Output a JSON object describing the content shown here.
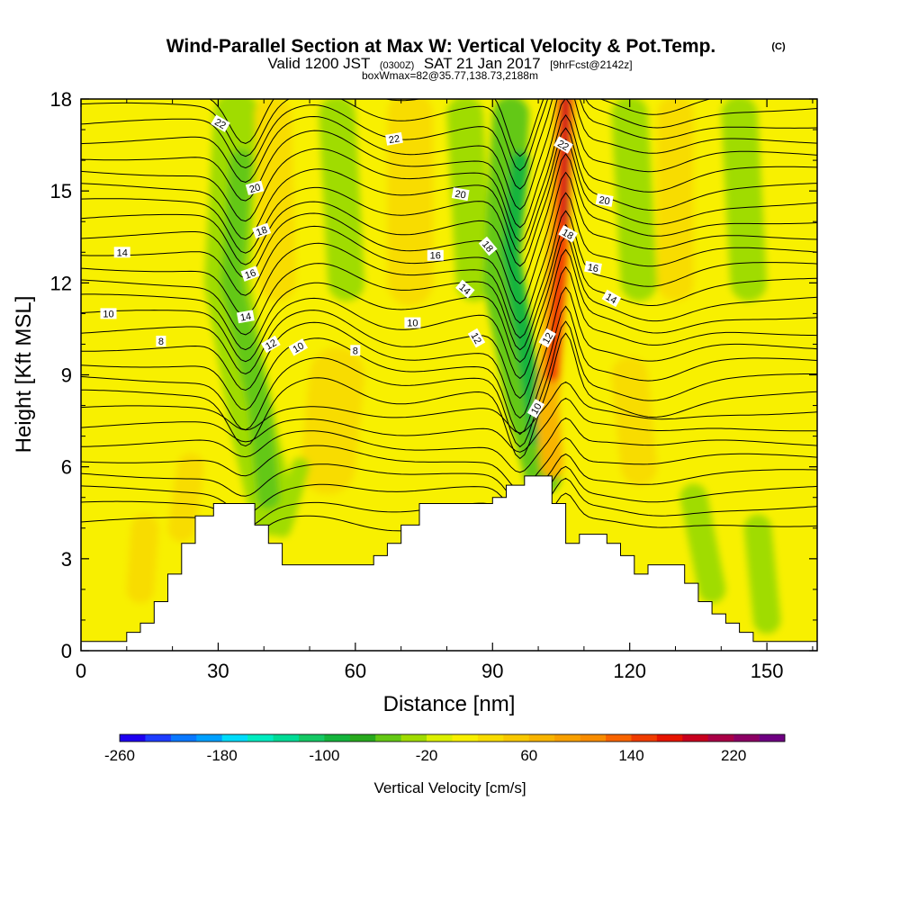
{
  "title": {
    "main": "Wind-Parallel Section at Max W: Vertical Velocity & Pot.Temp.",
    "copyright": "(C)",
    "valid_prefix": "Valid 1200 JST",
    "valid_utc": "(0300Z)",
    "valid_date": "SAT 21 Jan 2017",
    "forecast": "[9hrFcst@2142z]",
    "box": "boxWmax=82@35.77,138.73,2188m"
  },
  "chart_data": {
    "type": "heatmap",
    "xlabel": "Distance [nm]",
    "ylabel": "Height [Kft MSL]",
    "xlim": [
      0,
      161
    ],
    "ylim": [
      0,
      18
    ],
    "x_ticks": [
      0,
      30,
      60,
      90,
      120,
      150
    ],
    "y_ticks": [
      0,
      3,
      6,
      9,
      12,
      15,
      18
    ],
    "background_value_color": "#f8f000",
    "terrain_top_kft": [
      [
        0,
        0.3
      ],
      [
        10,
        0.3
      ],
      [
        10,
        0.6
      ],
      [
        13,
        0.6
      ],
      [
        13,
        0.9
      ],
      [
        16,
        0.9
      ],
      [
        16,
        1.6
      ],
      [
        19,
        1.6
      ],
      [
        19,
        2.5
      ],
      [
        22,
        2.5
      ],
      [
        22,
        3.5
      ],
      [
        25,
        3.5
      ],
      [
        25,
        4.4
      ],
      [
        29,
        4.4
      ],
      [
        29,
        4.8
      ],
      [
        38,
        4.8
      ],
      [
        38,
        4.1
      ],
      [
        41,
        4.1
      ],
      [
        41,
        3.5
      ],
      [
        44,
        3.5
      ],
      [
        44,
        2.8
      ],
      [
        64,
        2.8
      ],
      [
        64,
        3.1
      ],
      [
        67,
        3.1
      ],
      [
        67,
        3.5
      ],
      [
        70,
        3.5
      ],
      [
        70,
        4.1
      ],
      [
        74,
        4.1
      ],
      [
        74,
        4.8
      ],
      [
        90,
        4.8
      ],
      [
        90,
        5.0
      ],
      [
        93,
        5.0
      ],
      [
        93,
        5.4
      ],
      [
        97,
        5.4
      ],
      [
        97,
        5.7
      ],
      [
        103,
        5.7
      ],
      [
        103,
        4.8
      ],
      [
        106,
        4.8
      ],
      [
        106,
        3.5
      ],
      [
        109,
        3.5
      ],
      [
        109,
        3.8
      ],
      [
        115,
        3.8
      ],
      [
        115,
        3.5
      ],
      [
        118,
        3.5
      ],
      [
        118,
        3.1
      ],
      [
        121,
        3.1
      ],
      [
        121,
        2.5
      ],
      [
        124,
        2.5
      ],
      [
        124,
        2.8
      ],
      [
        132,
        2.8
      ],
      [
        132,
        2.2
      ],
      [
        135,
        2.2
      ],
      [
        135,
        1.6
      ],
      [
        138,
        1.6
      ],
      [
        138,
        1.2
      ],
      [
        141,
        1.2
      ],
      [
        141,
        0.9
      ],
      [
        144,
        0.9
      ],
      [
        144,
        0.6
      ],
      [
        147,
        0.6
      ],
      [
        147,
        0.3
      ],
      [
        161,
        0.3
      ]
    ],
    "velocity_features": [
      {
        "kind": "downdraft",
        "value": -40,
        "path": [
          [
            34,
            17.5
          ],
          [
            32,
            12
          ],
          [
            38,
            7
          ],
          [
            42,
            4.5
          ]
        ],
        "width_nm": 10
      },
      {
        "kind": "downdraft",
        "value": -60,
        "path": [
          [
            35,
            16
          ],
          [
            33,
            12
          ],
          [
            39,
            8
          ],
          [
            41,
            5
          ]
        ],
        "width_nm": 5
      },
      {
        "kind": "updraft",
        "value": 20,
        "path": [
          [
            42,
            17.5
          ],
          [
            43,
            12
          ]
        ],
        "width_nm": 8
      },
      {
        "kind": "downdraft",
        "value": -40,
        "path": [
          [
            56,
            17.5
          ],
          [
            58,
            12
          ]
        ],
        "width_nm": 8
      },
      {
        "kind": "updraft",
        "value": 20,
        "path": [
          [
            72,
            17.5
          ],
          [
            72,
            12
          ]
        ],
        "width_nm": 10
      },
      {
        "kind": "downdraft",
        "value": -40,
        "path": [
          [
            84,
            17.5
          ],
          [
            86,
            12
          ]
        ],
        "width_nm": 8
      },
      {
        "kind": "downdraft",
        "value": -60,
        "path": [
          [
            94,
            17.5
          ],
          [
            92,
            12
          ],
          [
            97,
            8
          ],
          [
            101,
            5.7
          ]
        ],
        "width_nm": 8
      },
      {
        "kind": "downdraft",
        "value": -100,
        "path": [
          [
            96,
            16
          ],
          [
            94,
            13
          ],
          [
            97,
            10
          ],
          [
            100,
            7
          ]
        ],
        "width_nm": 4
      },
      {
        "kind": "updraft",
        "value": 60,
        "path": [
          [
            106,
            18
          ],
          [
            104,
            12
          ],
          [
            102,
            8
          ],
          [
            103,
            6
          ]
        ],
        "width_nm": 5
      },
      {
        "kind": "updraft",
        "value": 140,
        "path": [
          [
            106,
            18
          ],
          [
            105,
            13
          ],
          [
            103,
            9
          ]
        ],
        "width_nm": 3
      },
      {
        "kind": "updraft",
        "value": 180,
        "path": [
          [
            106,
            18
          ],
          [
            106,
            14
          ]
        ],
        "width_nm": 1.5
      },
      {
        "kind": "downdraft",
        "value": -40,
        "path": [
          [
            120,
            17.5
          ],
          [
            122,
            12
          ]
        ],
        "width_nm": 8
      },
      {
        "kind": "updraft",
        "value": 20,
        "path": [
          [
            130,
            17.5
          ],
          [
            130,
            12
          ]
        ],
        "width_nm": 8
      },
      {
        "kind": "downdraft",
        "value": -40,
        "path": [
          [
            144,
            17.5
          ],
          [
            146,
            12
          ]
        ],
        "width_nm": 8
      },
      {
        "kind": "updraft",
        "value": 20,
        "path": [
          [
            24,
            6
          ],
          [
            22,
            4
          ]
        ],
        "width_nm": 6
      },
      {
        "kind": "updraft",
        "value": 20,
        "path": [
          [
            14,
            4
          ],
          [
            13,
            2
          ]
        ],
        "width_nm": 6
      },
      {
        "kind": "updraft",
        "value": 20,
        "path": [
          [
            56,
            9
          ],
          [
            54,
            6
          ]
        ],
        "width_nm": 12
      },
      {
        "kind": "downdraft",
        "value": -40,
        "path": [
          [
            48,
            6
          ],
          [
            44,
            4
          ]
        ],
        "width_nm": 4
      },
      {
        "kind": "updraft",
        "value": 20,
        "path": [
          [
            120,
            9
          ],
          [
            122,
            6
          ]
        ],
        "width_nm": 8
      },
      {
        "kind": "downdraft",
        "value": -40,
        "path": [
          [
            134,
            5
          ],
          [
            138,
            2
          ]
        ],
        "width_nm": 6
      },
      {
        "kind": "downdraft",
        "value": -40,
        "path": [
          [
            148,
            4
          ],
          [
            150,
            1
          ]
        ],
        "width_nm": 6
      }
    ],
    "contour_labels": [
      {
        "text": "22",
        "x": 30.5,
        "y": 17.2,
        "rot": 30
      },
      {
        "text": "22",
        "x": 68.5,
        "y": 16.7,
        "rot": -10
      },
      {
        "text": "22",
        "x": 105.5,
        "y": 16.5,
        "rot": 30
      },
      {
        "text": "20",
        "x": 38,
        "y": 15.1,
        "rot": -15
      },
      {
        "text": "20",
        "x": 83,
        "y": 14.9,
        "rot": 10
      },
      {
        "text": "20",
        "x": 114.5,
        "y": 14.7,
        "rot": 10
      },
      {
        "text": "18",
        "x": 39.5,
        "y": 13.7,
        "rot": -20
      },
      {
        "text": "18",
        "x": 89,
        "y": 13.2,
        "rot": 50
      },
      {
        "text": "18",
        "x": 106.5,
        "y": 13.6,
        "rot": 30
      },
      {
        "text": "16",
        "x": 37,
        "y": 12.3,
        "rot": -20
      },
      {
        "text": "16",
        "x": 77.5,
        "y": 12.9,
        "rot": 0
      },
      {
        "text": "16",
        "x": 112,
        "y": 12.5,
        "rot": 10
      },
      {
        "text": "14",
        "x": 9,
        "y": 13.0,
        "rot": 0
      },
      {
        "text": "14",
        "x": 36,
        "y": 10.9,
        "rot": -10
      },
      {
        "text": "14",
        "x": 84,
        "y": 11.8,
        "rot": 40
      },
      {
        "text": "14",
        "x": 116,
        "y": 11.5,
        "rot": 30
      },
      {
        "text": "12",
        "x": 41.5,
        "y": 10.0,
        "rot": -30
      },
      {
        "text": "12",
        "x": 86.5,
        "y": 10.2,
        "rot": 60
      },
      {
        "text": "12",
        "x": 102,
        "y": 10.2,
        "rot": -60
      },
      {
        "text": "10",
        "x": 6,
        "y": 11.0,
        "rot": 0
      },
      {
        "text": "10",
        "x": 47.5,
        "y": 9.9,
        "rot": -30
      },
      {
        "text": "10",
        "x": 72.5,
        "y": 10.7,
        "rot": 0
      },
      {
        "text": "10",
        "x": 99.5,
        "y": 7.9,
        "rot": -60
      },
      {
        "text": "8",
        "x": 17.5,
        "y": 10.1,
        "rot": 0
      },
      {
        "text": "8",
        "x": 60,
        "y": 9.8,
        "rot": 0
      }
    ],
    "colorbar": {
      "label": "Vertical Velocity [cm/s]",
      "min": -260,
      "max": 260,
      "step": 20,
      "tick_labels": [
        "-260",
        "-180",
        "-100",
        "-20",
        "60",
        "140",
        "220"
      ],
      "tick_values": [
        -260,
        -180,
        -100,
        -20,
        60,
        140,
        220
      ],
      "colors": [
        "#1e00f0",
        "#1e3cff",
        "#0a78ff",
        "#00a0ff",
        "#00dcfa",
        "#00ecc0",
        "#00dc96",
        "#14c864",
        "#14b43c",
        "#28aa1e",
        "#64c814",
        "#a0dc00",
        "#dcf000",
        "#f8f000",
        "#f8dc00",
        "#f8c800",
        "#f8b400",
        "#f8a000",
        "#f88c00",
        "#f86400",
        "#f03c00",
        "#e61400",
        "#c8001e",
        "#aa0046",
        "#8c0064",
        "#6e0082"
      ]
    }
  }
}
